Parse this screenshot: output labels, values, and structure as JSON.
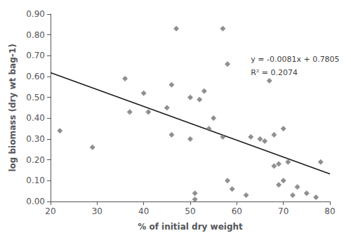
{
  "chart_data": {
    "type": "scatter",
    "xlabel": "% of initial dry weight",
    "ylabel": "log biomass (dry wt bag-1)",
    "series": [
      {
        "type": "scatter",
        "color": "#737373",
        "marker": "diamond",
        "x": [
          22,
          29,
          36,
          37,
          40,
          41,
          45,
          46,
          46,
          47,
          50,
          50,
          51,
          51,
          52,
          53,
          54,
          55,
          57,
          57,
          58,
          58,
          59,
          62,
          63,
          65,
          66,
          67,
          68,
          68,
          69,
          69,
          70,
          70,
          71,
          72,
          73,
          75,
          77,
          78
        ],
        "values": [
          0.34,
          0.26,
          0.59,
          0.43,
          0.52,
          0.43,
          0.45,
          0.56,
          0.32,
          0.83,
          0.5,
          0.3,
          0.04,
          0.01,
          0.49,
          0.53,
          0.35,
          0.4,
          0.83,
          0.31,
          0.66,
          0.1,
          0.06,
          0.03,
          0.31,
          0.3,
          0.29,
          0.58,
          0.32,
          0.17,
          0.08,
          0.18,
          0.35,
          0.1,
          0.19,
          0.03,
          0.07,
          0.04,
          0.02,
          0.19
        ]
      },
      {
        "type": "line",
        "color": "#1a1a1a",
        "line_style": "solid",
        "x": [
          20,
          80
        ],
        "values": [
          0.6185,
          0.1325
        ]
      }
    ],
    "annotations": [
      {
        "text": "y = -0.0081x + 0.7805",
        "x": 63,
        "y": 0.665
      },
      {
        "text": "R² = 0.2074",
        "x": 63,
        "y": 0.6
      }
    ],
    "xlim": [
      20,
      80
    ],
    "ylim": [
      0.0,
      0.9
    ],
    "xticks": [
      20,
      30,
      40,
      50,
      60,
      70,
      80
    ],
    "yticks": [
      {
        "value": 0.0,
        "label": "0.00"
      },
      {
        "value": 0.1,
        "label": "0.10"
      },
      {
        "value": 0.2,
        "label": "0.20"
      },
      {
        "value": 0.3,
        "label": "0.30"
      },
      {
        "value": 0.4,
        "label": "0.40"
      },
      {
        "value": 0.5,
        "label": "0.50"
      },
      {
        "value": 0.6,
        "label": "0.60"
      },
      {
        "value": 0.7,
        "label": "0.70"
      },
      {
        "value": 0.8,
        "label": "0.80"
      },
      {
        "value": 0.9,
        "label": "0.90"
      }
    ],
    "grid": false
  }
}
